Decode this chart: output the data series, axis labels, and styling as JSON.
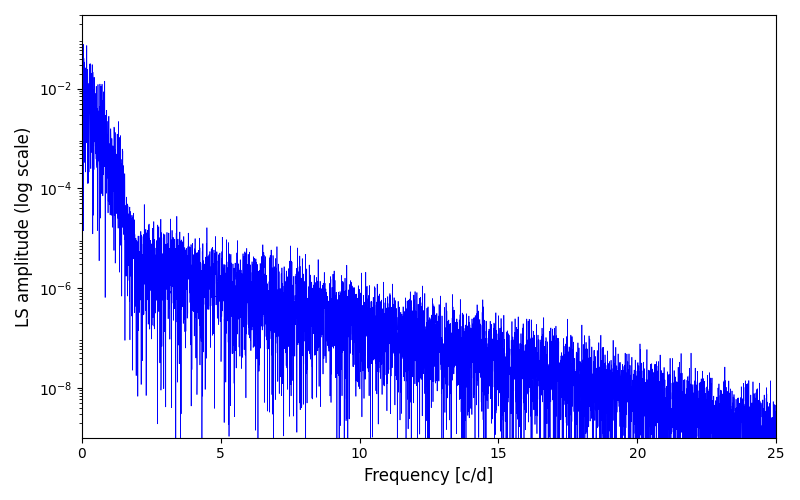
{
  "title": "",
  "xlabel": "Frequency [c/d]",
  "ylabel": "LS amplitude (log scale)",
  "line_color": "#0000ff",
  "line_width": 0.5,
  "xlim": [
    0,
    25
  ],
  "ylim": [
    1e-09,
    0.3
  ],
  "figsize": [
    8.0,
    5.0
  ],
  "dpi": 100,
  "n_points": 6000,
  "freq_max": 25.0,
  "seed": 12
}
